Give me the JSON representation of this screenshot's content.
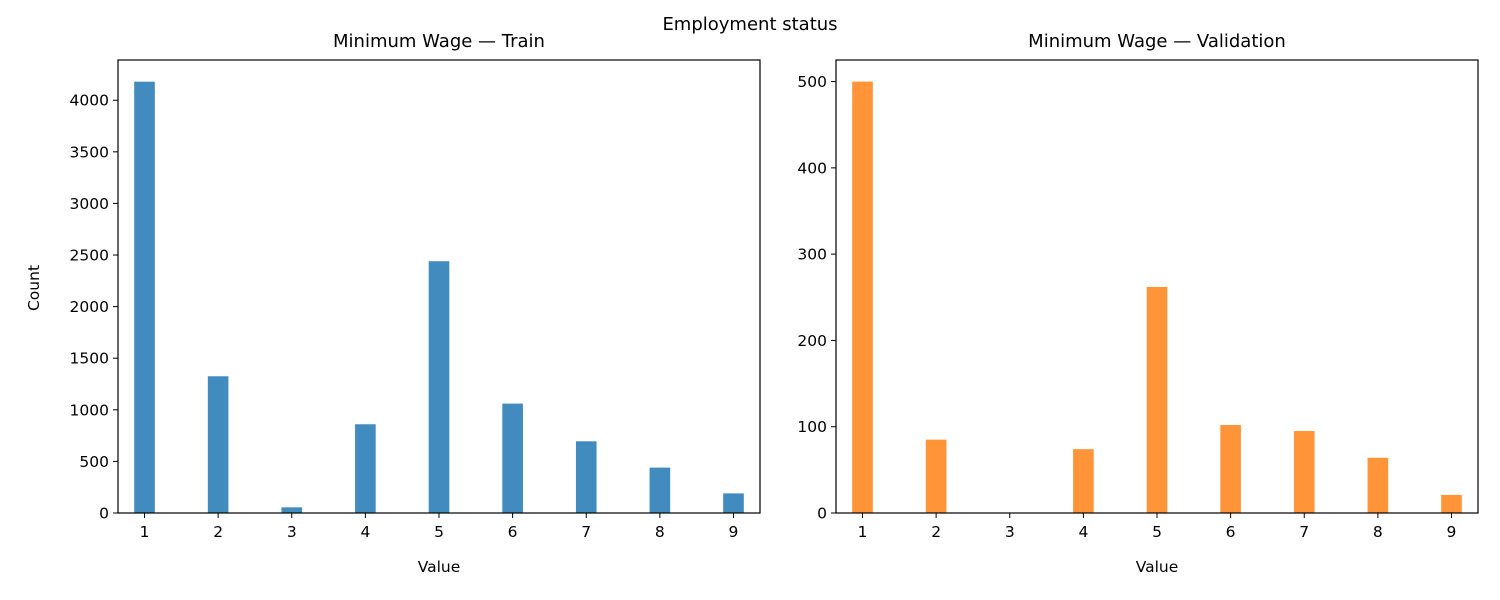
{
  "figure": {
    "suptitle": "Employment status"
  },
  "chart_data": [
    {
      "type": "bar",
      "title": "Minimum Wage — Train",
      "xlabel": "Value",
      "ylabel": "Count",
      "categories": [
        1,
        2,
        3,
        4,
        5,
        6,
        7,
        8,
        9
      ],
      "values": [
        4180,
        1325,
        55,
        860,
        2440,
        1060,
        695,
        440,
        190
      ],
      "xlim": [
        0.64,
        9.36
      ],
      "ylim": [
        0,
        4390
      ],
      "xticks": [
        1,
        2,
        3,
        4,
        5,
        6,
        7,
        8,
        9
      ],
      "yticks": [
        0,
        500,
        1000,
        1500,
        2000,
        2500,
        3000,
        3500,
        4000
      ],
      "color": "#428bbf",
      "grid": false,
      "legend": "none"
    },
    {
      "type": "bar",
      "title": "Minimum Wage — Validation",
      "xlabel": "Value",
      "ylabel": "",
      "categories": [
        1,
        2,
        3,
        4,
        5,
        6,
        7,
        8,
        9
      ],
      "values": [
        500,
        85,
        0,
        74,
        262,
        102,
        95,
        64,
        21
      ],
      "xlim": [
        0.64,
        9.36
      ],
      "ylim": [
        0,
        525
      ],
      "xticks": [
        1,
        2,
        3,
        4,
        5,
        6,
        7,
        8,
        9
      ],
      "yticks": [
        0,
        100,
        200,
        300,
        400,
        500
      ],
      "color": "#ff9538",
      "grid": false,
      "legend": "none"
    }
  ]
}
